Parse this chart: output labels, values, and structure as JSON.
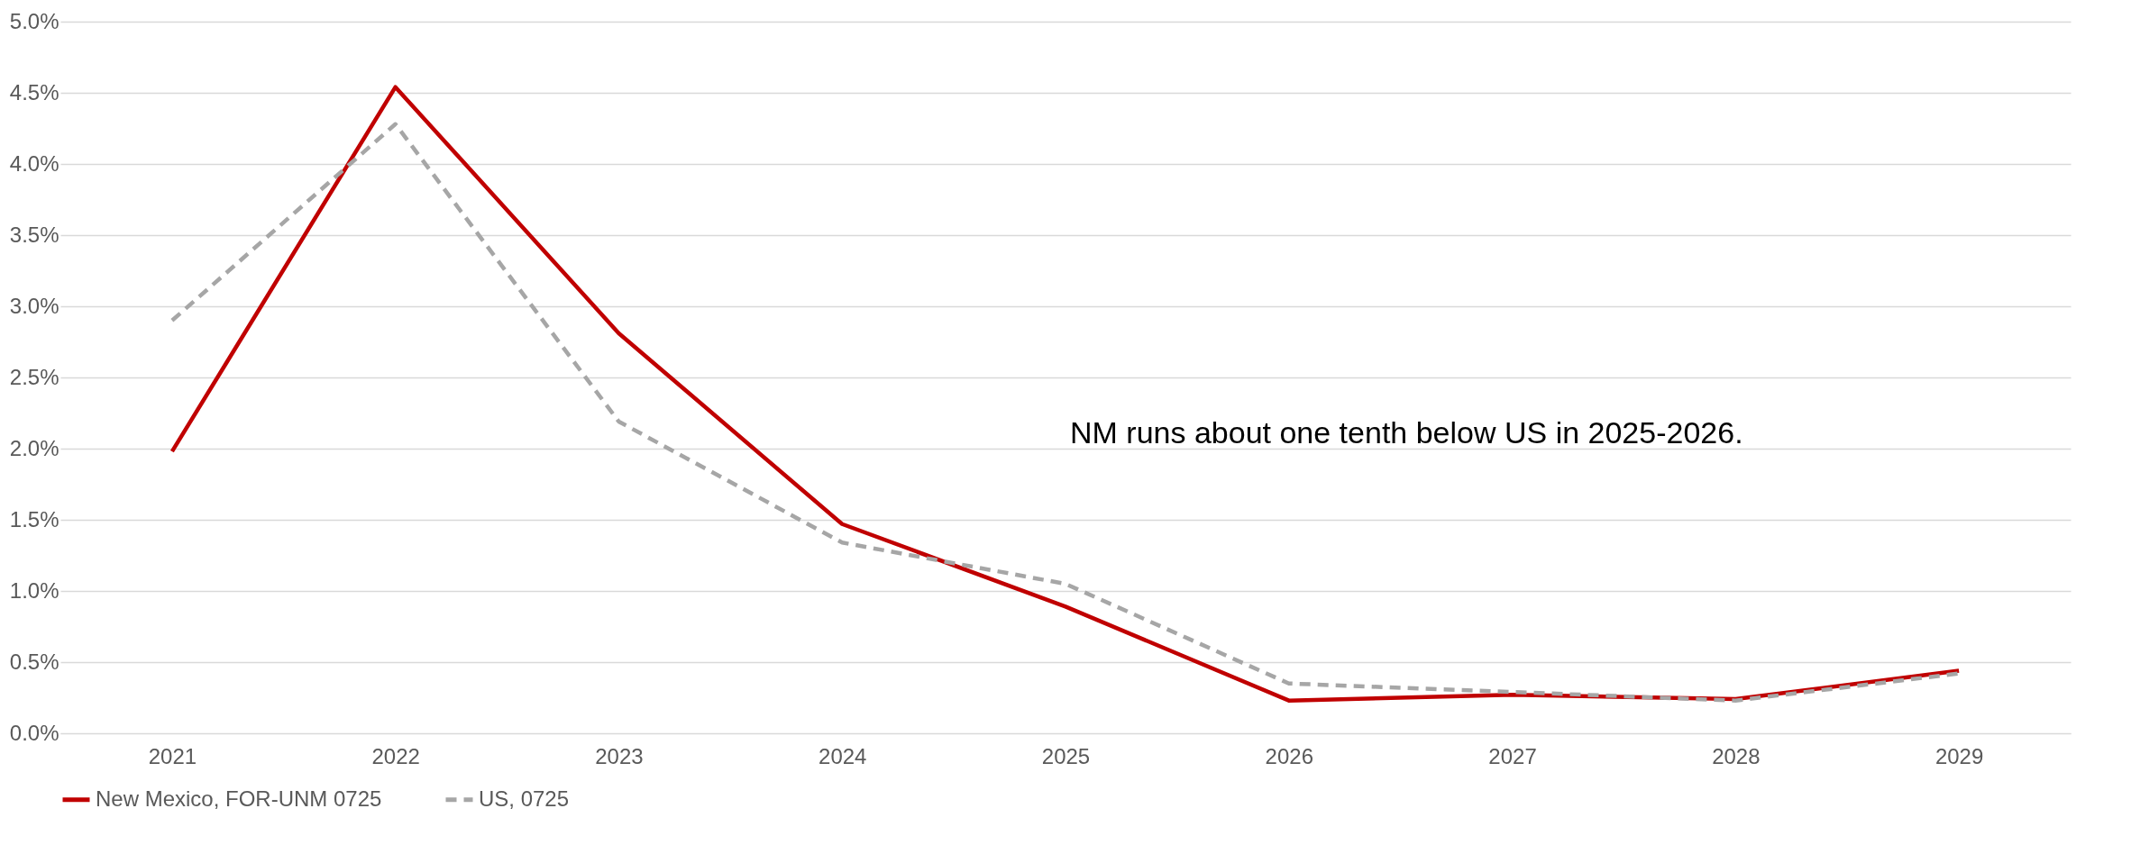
{
  "chart_data": {
    "type": "line",
    "categories": [
      "2021",
      "2022",
      "2023",
      "2024",
      "2025",
      "2026",
      "2027",
      "2028",
      "2029"
    ],
    "series": [
      {
        "name": "New Mexico, FOR-UNM 0725",
        "color": "#c00000",
        "line_style": "solid",
        "values": [
          1.98,
          4.54,
          2.81,
          1.47,
          0.89,
          0.23,
          0.27,
          0.24,
          0.44
        ]
      },
      {
        "name": "US, 0725",
        "color": "#a6a6a6",
        "line_style": "dashed",
        "values": [
          2.9,
          4.28,
          2.19,
          1.34,
          1.05,
          0.35,
          0.29,
          0.23,
          0.42
        ]
      }
    ],
    "ylim": [
      0,
      5
    ],
    "yticks": [
      {
        "value": 0,
        "label": "0.0%"
      },
      {
        "value": 0.5,
        "label": "0.5%"
      },
      {
        "value": 1,
        "label": "1.0%"
      },
      {
        "value": 1.5,
        "label": "1.5%"
      },
      {
        "value": 2,
        "label": "2.0%"
      },
      {
        "value": 2.5,
        "label": "2.5%"
      },
      {
        "value": 3,
        "label": "3.0%"
      },
      {
        "value": 3.5,
        "label": "3.5%"
      },
      {
        "value": 4,
        "label": "4.0%"
      },
      {
        "value": 4.5,
        "label": "4.5%"
      },
      {
        "value": 5,
        "label": "5.0%"
      }
    ],
    "annotations": [
      "NM runs about one tenth below US in 2025-2026."
    ],
    "grid": "y",
    "legend": "bottom",
    "marker": "none"
  }
}
